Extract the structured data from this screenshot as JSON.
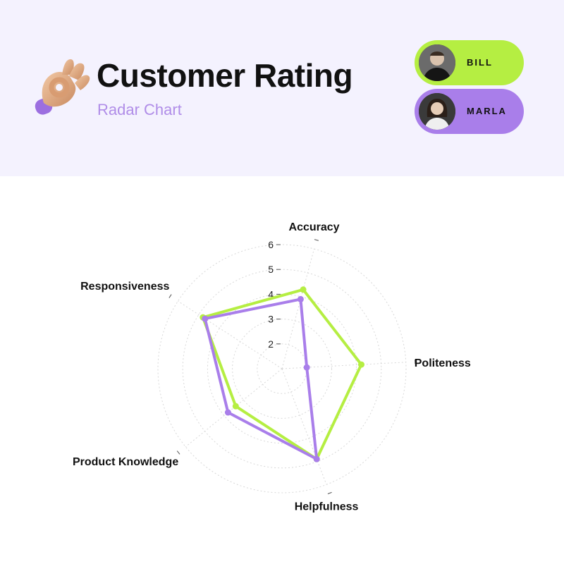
{
  "header": {
    "title": "Customer Rating",
    "subtitle": "Radar Chart"
  },
  "legend": [
    {
      "name": "BILL",
      "color": "#b5ee42"
    },
    {
      "name": "MARLA",
      "color": "#a97eea"
    }
  ],
  "chart_data": {
    "type": "radar",
    "axes": [
      "Accuracy",
      "Politeness",
      "Helpfulness",
      "Product Knowledge",
      "Responsiveness"
    ],
    "ticks": [
      2,
      3,
      4,
      5,
      6
    ],
    "range": [
      1,
      6
    ],
    "grid": true,
    "series": [
      {
        "name": "BILL",
        "color": "#b5ee42",
        "values": [
          4.3,
          4.2,
          4.9,
          3.4,
          4.8
        ]
      },
      {
        "name": "MARLA",
        "color": "#a97eea",
        "values": [
          3.9,
          2.0,
          4.9,
          3.8,
          4.7
        ]
      }
    ]
  }
}
